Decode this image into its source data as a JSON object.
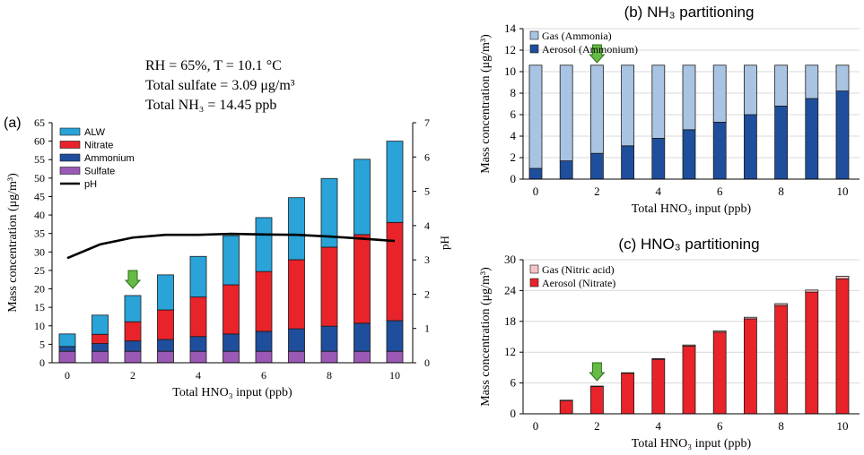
{
  "chart_data": [
    {
      "panel": "(a)",
      "type": "bar",
      "stacked": true,
      "annotation_lines": [
        "RH = 65%, T =  10.1 °C",
        "Total sulfate = 3.09 μg/m³",
        "Total NH₃ = 14.45 ppb"
      ],
      "xlabel": "Total HNO₃ input (ppb)",
      "ylabel": "Mass concentration (μg/m³)",
      "y2label": "pH",
      "x": [
        0,
        1,
        2,
        3,
        4,
        5,
        6,
        7,
        8,
        9,
        10
      ],
      "xticks": [
        "0",
        "2",
        "4",
        "6",
        "8",
        "10"
      ],
      "ylim": [
        0,
        65
      ],
      "yticks": [
        "0",
        "5",
        "10",
        "15",
        "20",
        "25",
        "30",
        "35",
        "40",
        "45",
        "50",
        "55",
        "60",
        "65"
      ],
      "y2lim": [
        0,
        7
      ],
      "y2ticks": [
        "0",
        "1",
        "2",
        "3",
        "4",
        "5",
        "6",
        "7"
      ],
      "series": [
        {
          "name": "Sulfate",
          "color": "#9b59b6",
          "values": [
            3.1,
            3.1,
            3.1,
            3.1,
            3.1,
            3.1,
            3.1,
            3.1,
            3.1,
            3.1,
            3.1
          ]
        },
        {
          "name": "Ammonium",
          "color": "#1f4e9c",
          "values": [
            1.3,
            2.1,
            2.8,
            3.2,
            4.0,
            4.7,
            5.4,
            6.1,
            6.8,
            7.6,
            8.3
          ]
        },
        {
          "name": "Nitrate",
          "color": "#e8232a",
          "values": [
            0.0,
            2.5,
            5.2,
            8.0,
            10.7,
            13.3,
            16.2,
            18.7,
            21.4,
            24.0,
            26.6
          ]
        },
        {
          "name": "ALW",
          "color": "#29a3d8",
          "values": [
            3.4,
            5.2,
            7.1,
            9.5,
            11.0,
            13.3,
            14.6,
            16.8,
            18.6,
            20.4,
            22.0
          ]
        }
      ],
      "line": {
        "name": "pH",
        "color": "#000000",
        "values": [
          3.05,
          3.45,
          3.65,
          3.73,
          3.73,
          3.76,
          3.74,
          3.73,
          3.68,
          3.62,
          3.55
        ]
      },
      "legend": [
        "ALW",
        "Nitrate",
        "Ammonium",
        "Sulfate",
        "pH"
      ],
      "marker_at_x": 2
    },
    {
      "panel": "(b)",
      "type": "bar",
      "stacked": true,
      "title": "(b) NH₃ partitioning",
      "xlabel": "Total HNO₃  input (ppb)",
      "ylabel": "Mass concentration (μg/m³)",
      "x": [
        0,
        1,
        2,
        3,
        4,
        5,
        6,
        7,
        8,
        9,
        10
      ],
      "xticks": [
        "0",
        "2",
        "4",
        "6",
        "8",
        "10"
      ],
      "ylim": [
        0,
        14
      ],
      "yticks": [
        "0",
        "2",
        "4",
        "6",
        "8",
        "10",
        "12",
        "14"
      ],
      "series": [
        {
          "name": "Aerosol (Ammonium)",
          "color": "#1f4e9c",
          "values": [
            1.0,
            1.7,
            2.4,
            3.1,
            3.8,
            4.6,
            5.3,
            6.0,
            6.8,
            7.5,
            8.2
          ]
        },
        {
          "name": "Gas (Ammonia)",
          "color": "#a9c4e2",
          "values": [
            9.6,
            8.9,
            8.2,
            7.5,
            6.8,
            6.0,
            5.3,
            4.6,
            3.8,
            3.1,
            2.4
          ]
        }
      ],
      "legend": [
        "Gas (Ammonia)",
        "Aerosol (Ammonium)"
      ],
      "marker_at_x": 2
    },
    {
      "panel": "(c)",
      "type": "bar",
      "stacked": true,
      "title": "(c) HNO₃ partitioning",
      "xlabel": "Total HNO₃  input (ppb)",
      "ylabel": "Mass concentration (μg/m³)",
      "x": [
        0,
        1,
        2,
        3,
        4,
        5,
        6,
        7,
        8,
        9,
        10
      ],
      "xticks": [
        "0",
        "2",
        "4",
        "6",
        "8",
        "10"
      ],
      "ylim": [
        0,
        30
      ],
      "yticks": [
        "0",
        "6",
        "12",
        "18",
        "24",
        "30"
      ],
      "series": [
        {
          "name": "Aerosol (Nitrate)",
          "color": "#e8232a",
          "values": [
            0.0,
            2.6,
            5.3,
            7.9,
            10.6,
            13.2,
            15.9,
            18.5,
            21.1,
            23.7,
            26.3
          ]
        },
        {
          "name": "Gas (Nitric acid)",
          "color": "#f6c4c4",
          "values": [
            0.0,
            0.05,
            0.1,
            0.1,
            0.15,
            0.2,
            0.25,
            0.3,
            0.35,
            0.4,
            0.5
          ]
        }
      ],
      "legend": [
        "Gas (Nitric acid)",
        "Aerosol (Nitrate)"
      ],
      "marker_at_x": 2
    }
  ]
}
